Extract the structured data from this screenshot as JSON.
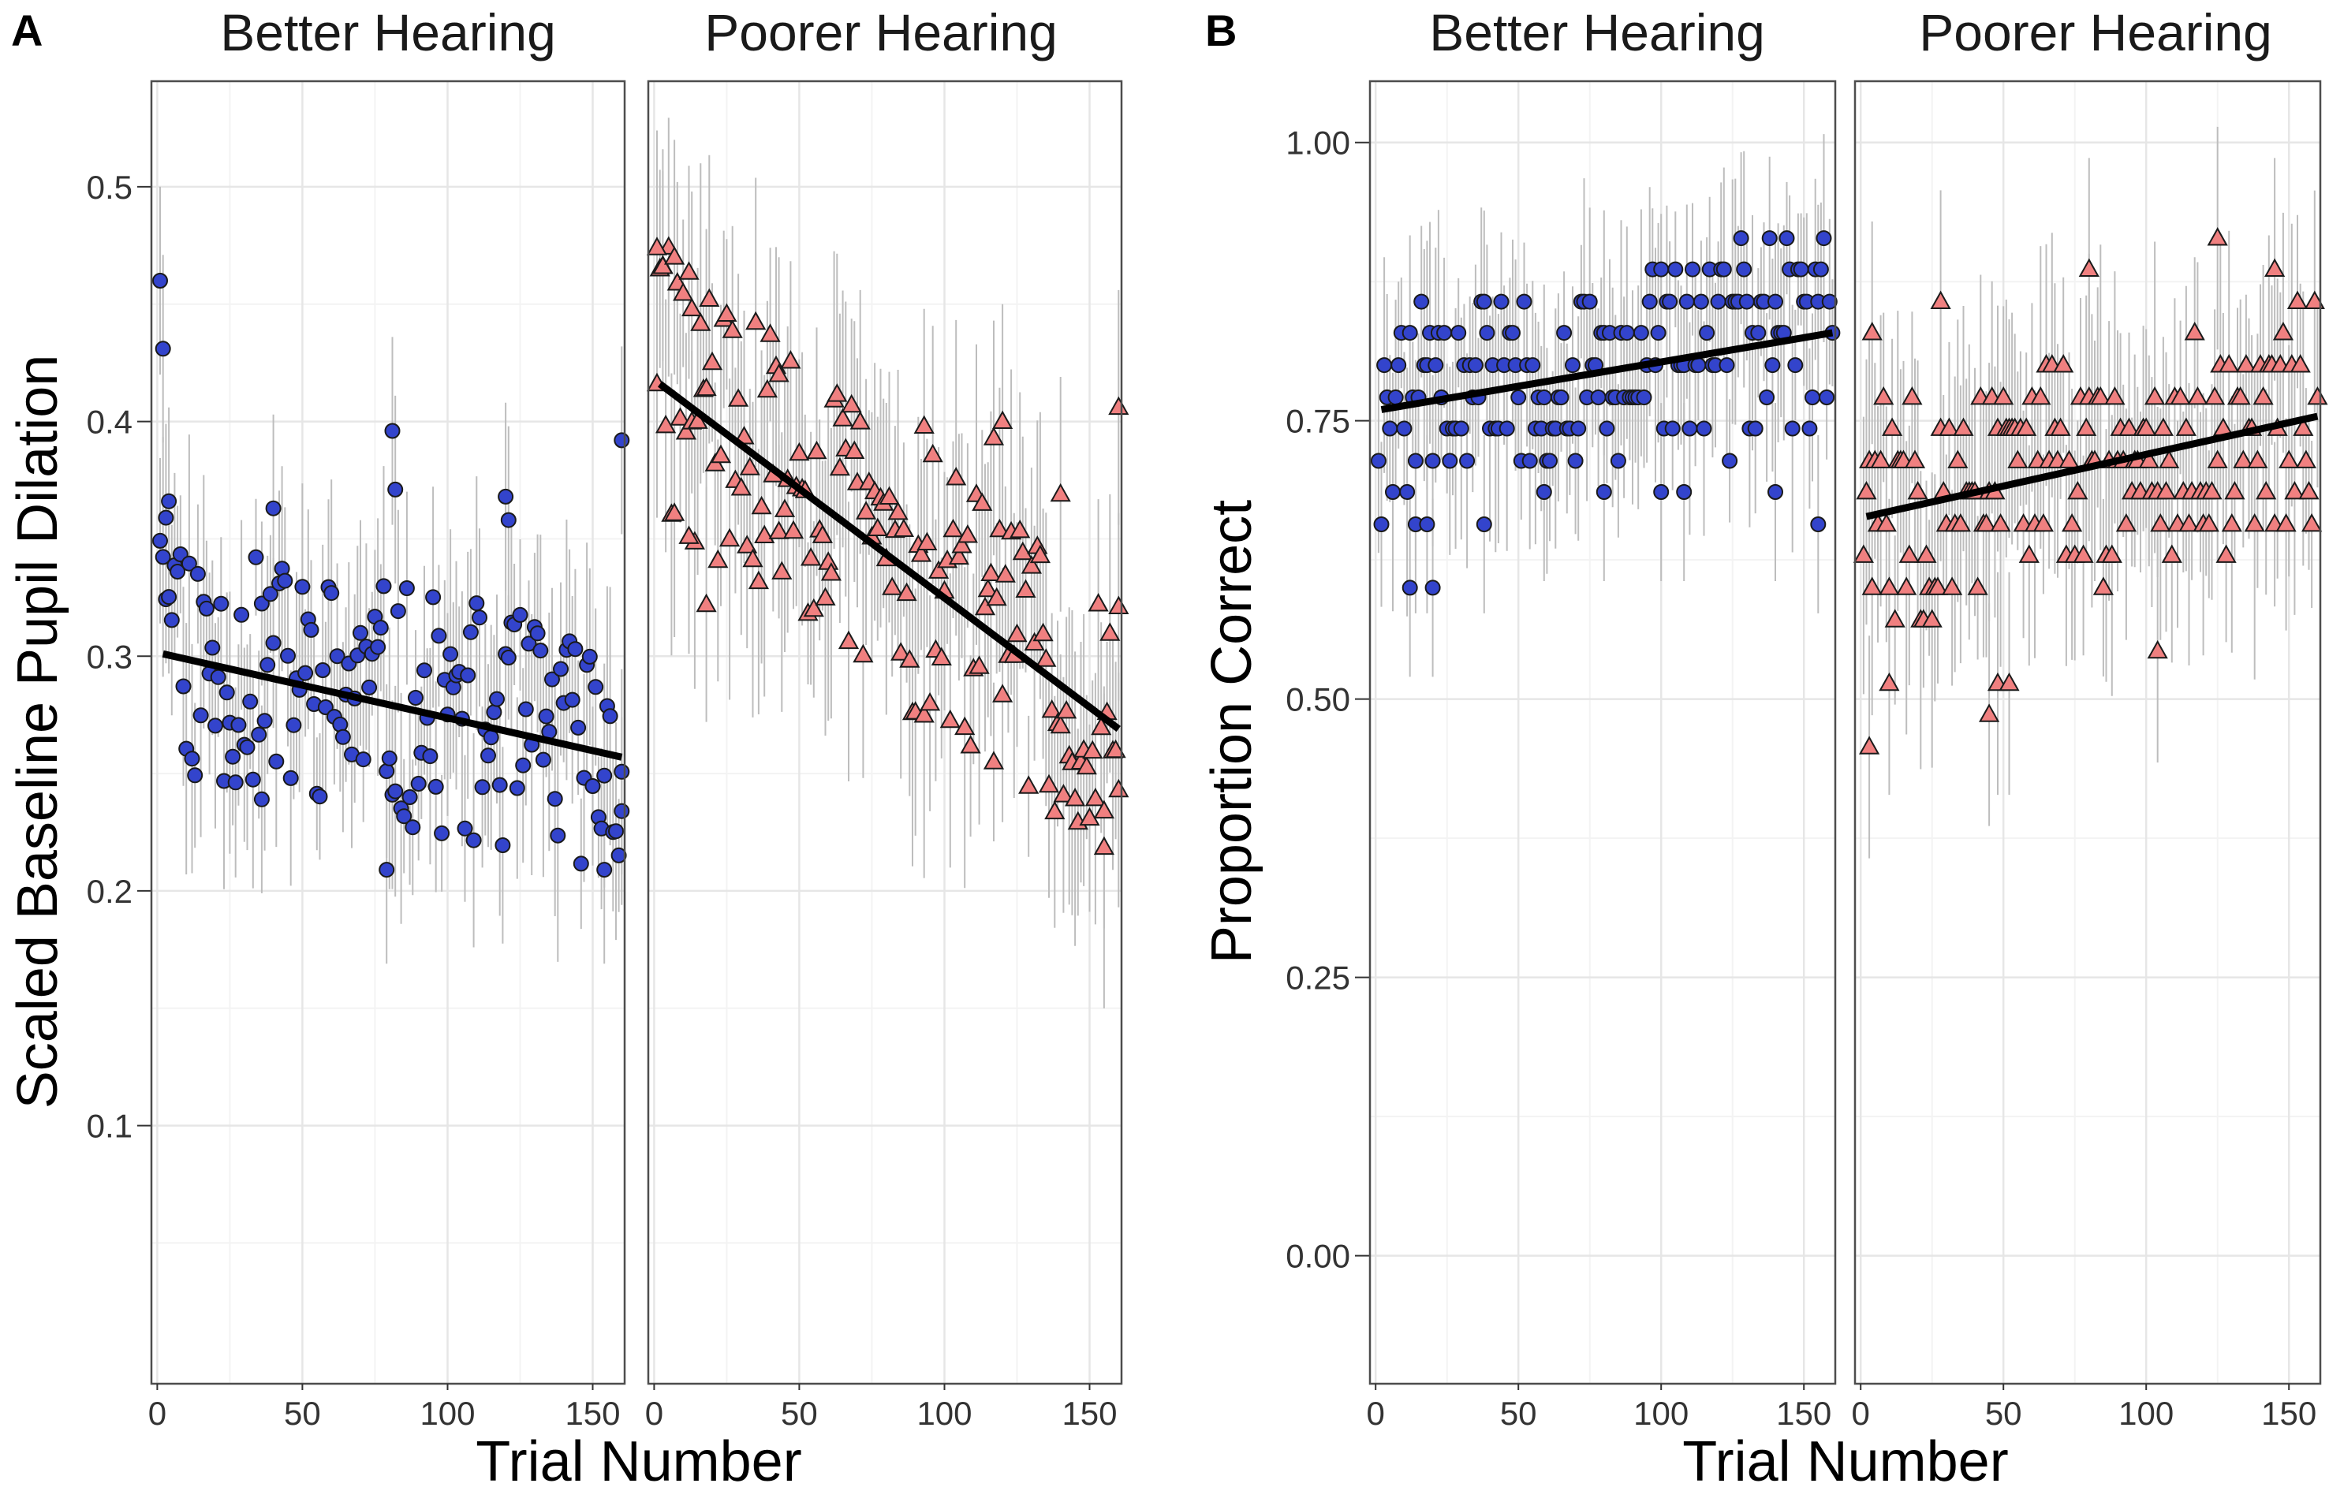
{
  "figure": {
    "panel_letters": [
      "A",
      "B"
    ],
    "colors": {
      "better_fill": "#3344cc",
      "poorer_fill": "#f08080",
      "marker_stroke": "#1a1a1a",
      "errorbar": "#bdbdbd",
      "fit_line": "#000000",
      "grid_major": "#e6e6e6",
      "grid_minor": "#f3f3f3",
      "panel_border": "#4d4d4d"
    },
    "icons": {
      "better_marker": "circle-icon",
      "poorer_marker": "triangle-icon"
    }
  },
  "chart_data": [
    {
      "type": "scatter",
      "panel": "A",
      "ylabel": "Scaled Baseline Pupil Dilation",
      "xlabel": "Trial Number",
      "ylim": [
        -0.01,
        0.545
      ],
      "xlim": [
        -2,
        161
      ],
      "yticks": [
        0.1,
        0.2,
        0.3,
        0.4,
        0.5
      ],
      "ytick_labels": [
        "0.1",
        "0.2",
        "0.3",
        "0.4",
        "0.5"
      ],
      "xticks": [
        0,
        50,
        100,
        150
      ],
      "xtick_labels": [
        "0",
        "50",
        "100",
        "150"
      ],
      "facets": [
        {
          "label": "Better Hearing",
          "marker": "circle",
          "fit": {
            "x": [
              2,
              160
            ],
            "y": [
              0.301,
              0.257
            ]
          },
          "pattern": {
            "base": 0.275,
            "amp": 0.052,
            "seed": 11,
            "start_boost": 0.17,
            "err": 0.04
          },
          "highlights": [
            [
              1,
              0.46
            ],
            [
              2,
              0.431
            ],
            [
              4,
              0.366
            ],
            [
              3,
              0.359
            ],
            [
              40,
              0.363
            ],
            [
              81,
              0.396
            ],
            [
              82,
              0.371
            ],
            [
              120,
              0.368
            ],
            [
              121,
              0.358
            ],
            [
              160,
              0.392
            ],
            [
              79,
              0.209
            ],
            [
              154,
              0.209
            ],
            [
              36,
              0.239
            ],
            [
              160,
              0.234
            ]
          ]
        },
        {
          "label": "Poorer Hearing",
          "marker": "triangle",
          "fit": {
            "x": [
              2,
              160
            ],
            "y": [
              0.416,
              0.269
            ]
          },
          "pattern": {
            "base": 0.0,
            "amp": 0.06,
            "seed": 29,
            "start_boost": 0.04,
            "err": 0.05
          },
          "highlights": [
            [
              1,
              0.474
            ],
            [
              3,
              0.466
            ],
            [
              7,
              0.47
            ],
            [
              13,
              0.448
            ],
            [
              43,
              0.42
            ],
            [
              93,
              0.398
            ],
            [
              117,
              0.393
            ],
            [
              120,
              0.4
            ],
            [
              140,
              0.369
            ],
            [
              160,
              0.406
            ],
            [
              18,
              0.322
            ],
            [
              12,
              0.351
            ],
            [
              155,
              0.234
            ],
            [
              160,
              0.243
            ]
          ]
        }
      ]
    },
    {
      "type": "scatter",
      "panel": "B",
      "ylabel": "Proportion Correct",
      "xlabel": "Trial Number",
      "ylim": [
        -0.115,
        1.055
      ],
      "xlim": [
        -2,
        161
      ],
      "yticks": [
        0.0,
        0.25,
        0.5,
        0.75,
        1.0
      ],
      "ytick_labels": [
        "0.00",
        "0.25",
        "0.50",
        "0.75",
        "1.00"
      ],
      "xticks": [
        0,
        50,
        100,
        150
      ],
      "xtick_labels": [
        "0",
        "50",
        "100",
        "150"
      ],
      "facets": [
        {
          "label": "Better Hearing",
          "marker": "circle",
          "fit": {
            "x": [
              2,
              160
            ],
            "y": [
              0.76,
              0.829
            ]
          },
          "levels": [
            0.6,
            0.657,
            0.686,
            0.714,
            0.743,
            0.771,
            0.8,
            0.829,
            0.857,
            0.886,
            0.914
          ],
          "pattern": {
            "base": 0.0,
            "amp": 0.09,
            "seed": 47,
            "start_boost": 0.0,
            "err": 0.08
          },
          "highlights": [
            [
              12,
              0.6
            ],
            [
              20,
              0.6
            ],
            [
              14,
              0.657
            ],
            [
              18,
              0.657
            ],
            [
              38,
              0.657
            ],
            [
              59,
              0.686
            ],
            [
              80,
              0.686
            ],
            [
              100,
              0.686
            ],
            [
              108,
              0.686
            ],
            [
              140,
              0.686
            ],
            [
              155,
              0.657
            ]
          ]
        },
        {
          "label": "Poorer Hearing",
          "marker": "triangle",
          "fit": {
            "x": [
              2,
              160
            ],
            "y": [
              0.664,
              0.754
            ]
          },
          "levels": [
            0.457,
            0.486,
            0.514,
            0.543,
            0.571,
            0.6,
            0.629,
            0.657,
            0.686,
            0.714,
            0.743,
            0.771,
            0.8,
            0.829,
            0.857,
            0.886
          ],
          "pattern": {
            "base": 0.0,
            "amp": 0.1,
            "seed": 83,
            "start_boost": 0.0,
            "err": 0.1
          },
          "highlights": [
            [
              3,
              0.457
            ],
            [
              10,
              0.514
            ],
            [
              45,
              0.486
            ],
            [
              48,
              0.514
            ],
            [
              52,
              0.514
            ],
            [
              104,
              0.543
            ],
            [
              125,
              0.914
            ],
            [
              145,
              0.886
            ],
            [
              80,
              0.886
            ],
            [
              28,
              0.857
            ],
            [
              4,
              0.829
            ]
          ]
        }
      ]
    }
  ]
}
